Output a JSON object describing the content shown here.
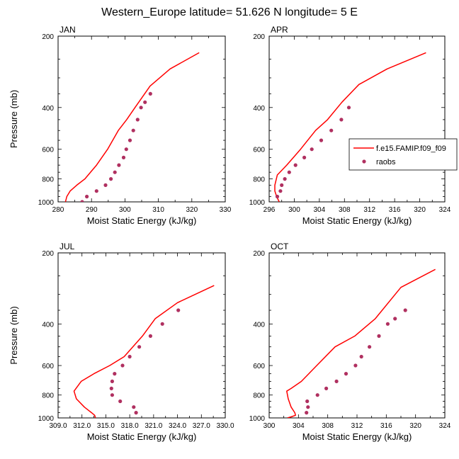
{
  "title": "Western_Europe  latitude= 51.626 N longitude= 5 E",
  "colors": {
    "model": "#ff0000",
    "obs": "#b03060"
  },
  "legend": {
    "model_label": "f.e15.FAMIP.f09_f09",
    "obs_label": "raobs"
  },
  "chart_data": [
    {
      "type": "line",
      "panel": "JAN",
      "xlabel": "Moist Static Energy (kJ/kg)",
      "ylabel": "Pressure (mb)",
      "xlim": [
        280,
        330
      ],
      "ylim": [
        1000,
        200
      ],
      "y_log_scale": true,
      "y_inverted": true,
      "xticks": [
        280,
        290,
        300,
        310,
        320,
        330
      ],
      "xtick_labels": [
        "280",
        "290",
        "300",
        "310",
        "320",
        "330"
      ],
      "yticks": [
        200,
        400,
        600,
        800,
        1000
      ],
      "ytick_labels": [
        "200",
        "400",
        "600",
        "800",
        "1000"
      ],
      "series": [
        {
          "name": "f.e15.FAMIP.f09_f09",
          "style": "line",
          "x": [
            282.2,
            282.6,
            283.6,
            285.6,
            288.0,
            291.5,
            294.8,
            298.0,
            300.5,
            303.0,
            307.5,
            313.5,
            322.2
          ],
          "y": [
            1000,
            950,
            900,
            850,
            800,
            700,
            600,
            500,
            450,
            400,
            325,
            275,
            235
          ]
        },
        {
          "name": "raobs",
          "style": "marker",
          "x": [
            287.2,
            288.6,
            291.5,
            294.2,
            295.8,
            297.0,
            298.2,
            299.6,
            300.4,
            301.5,
            302.5,
            303.8,
            304.8,
            306.0,
            307.6
          ],
          "y": [
            1000,
            950,
            900,
            850,
            800,
            750,
            700,
            650,
            600,
            550,
            500,
            450,
            400,
            380,
            350
          ]
        }
      ]
    },
    {
      "type": "line",
      "panel": "APR",
      "xlabel": "Moist Static Energy (kJ/kg)",
      "ylabel": "",
      "xlim": [
        296,
        324
      ],
      "ylim": [
        1000,
        200
      ],
      "y_log_scale": true,
      "y_inverted": true,
      "xticks": [
        296,
        300,
        304,
        308,
        312,
        316,
        320,
        324
      ],
      "xtick_labels": [
        "296",
        "300",
        "304",
        "308",
        "312",
        "316",
        "320",
        "324"
      ],
      "yticks": [
        200,
        400,
        600,
        800,
        1000
      ],
      "ytick_labels": [
        "200",
        "400",
        "600",
        "800",
        "1000"
      ],
      "series": [
        {
          "name": "f.e15.FAMIP.f09_f09",
          "style": "line",
          "x": [
            297.6,
            297.2,
            296.9,
            296.9,
            297.3,
            298.8,
            301.0,
            303.4,
            305.3,
            307.6,
            310.3,
            314.8,
            321.0
          ],
          "y": [
            1000,
            950,
            900,
            850,
            770,
            700,
            600,
            500,
            450,
            380,
            320,
            275,
            235
          ]
        },
        {
          "name": "raobs",
          "style": "marker",
          "x": [
            297.3,
            297.8,
            298.0,
            298.5,
            299.2,
            300.2,
            301.6,
            302.8,
            304.3,
            305.9,
            307.5,
            308.7
          ],
          "y": [
            950,
            900,
            850,
            800,
            750,
            700,
            650,
            600,
            550,
            500,
            450,
            400
          ]
        }
      ]
    },
    {
      "type": "line",
      "panel": "JUL",
      "xlabel": "Moist Static Energy (kJ/kg)",
      "ylabel": "Pressure (mb)",
      "xlim": [
        309,
        330
      ],
      "ylim": [
        1000,
        200
      ],
      "y_log_scale": true,
      "y_inverted": true,
      "xticks": [
        309,
        312,
        315,
        318,
        321,
        324,
        327,
        330
      ],
      "xtick_labels": [
        "309.0",
        "312.0",
        "315.0",
        "318.0",
        "321.0",
        "324.0",
        "327.0",
        "330.0"
      ],
      "yticks": [
        200,
        400,
        600,
        800,
        1000
      ],
      "ytick_labels": [
        "200",
        "400",
        "600",
        "800",
        "1000"
      ],
      "series": [
        {
          "name": "f.e15.FAMIP.f09_f09",
          "style": "line",
          "x": [
            313.7,
            313.6,
            313.2,
            312.3,
            311.3,
            311.0,
            311.9,
            313.5,
            315.5,
            317.3,
            319.6,
            321.2,
            324.0,
            328.6
          ],
          "y": [
            1000,
            975,
            950,
            900,
            830,
            770,
            700,
            650,
            600,
            550,
            450,
            380,
            325,
            275
          ]
        },
        {
          "name": "raobs",
          "style": "marker",
          "x": [
            318.8,
            318.5,
            316.8,
            315.8,
            315.7,
            315.8,
            316.1,
            317.1,
            318.0,
            319.2,
            320.6,
            322.1,
            324.1
          ],
          "y": [
            950,
            900,
            850,
            800,
            750,
            700,
            650,
            600,
            550,
            500,
            450,
            400,
            350
          ]
        }
      ]
    },
    {
      "type": "line",
      "panel": "OCT",
      "xlabel": "Moist Static Energy (kJ/kg)",
      "ylabel": "",
      "xlim": [
        300,
        324
      ],
      "ylim": [
        1000,
        200
      ],
      "y_log_scale": true,
      "y_inverted": true,
      "xticks": [
        300,
        304,
        308,
        312,
        316,
        320,
        324
      ],
      "xtick_labels": [
        "300",
        "304",
        "308",
        "312",
        "316",
        "320",
        "324"
      ],
      "yticks": [
        200,
        400,
        600,
        800,
        1000
      ],
      "ytick_labels": [
        "200",
        "400",
        "600",
        "800",
        "1000"
      ],
      "series": [
        {
          "name": "f.e15.FAMIP.f09_f09",
          "style": "line",
          "x": [
            302.5,
            303.0,
            303.6,
            303.5,
            303.0,
            302.6,
            302.4,
            303.0,
            304.4,
            306.5,
            309.0,
            311.7,
            314.5,
            318.0,
            322.7
          ],
          "y": [
            1000,
            990,
            975,
            950,
            900,
            830,
            770,
            750,
            700,
            600,
            500,
            450,
            380,
            280,
            235
          ]
        },
        {
          "name": "raobs",
          "style": "marker",
          "x": [
            305.1,
            305.3,
            305.2,
            306.6,
            307.8,
            309.2,
            310.5,
            311.8,
            312.6,
            313.7,
            315.0,
            316.2,
            317.2,
            318.6
          ],
          "y": [
            950,
            900,
            850,
            800,
            750,
            700,
            650,
            600,
            550,
            500,
            450,
            400,
            380,
            350
          ]
        }
      ]
    }
  ]
}
